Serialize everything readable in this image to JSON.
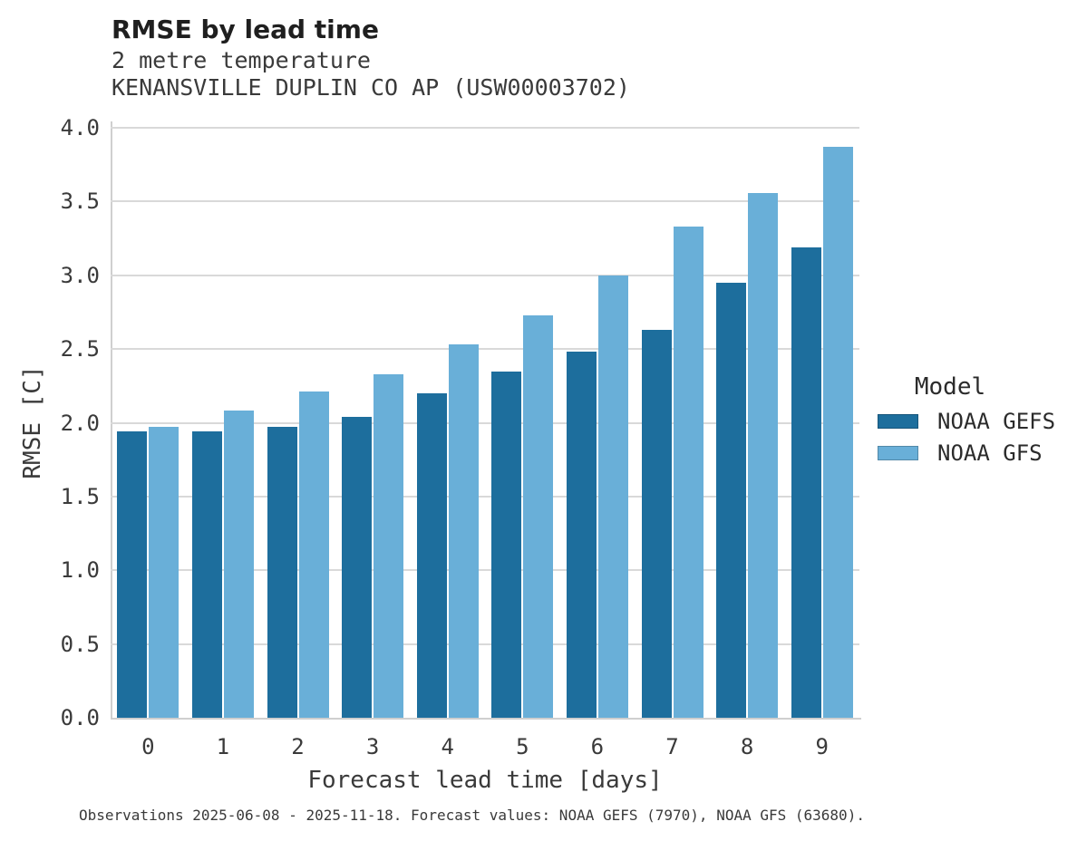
{
  "header": {
    "title": "RMSE by lead time",
    "subtitle_lines": [
      "2 metre temperature",
      "KENANSVILLE DUPLIN CO AP (USW00003702)"
    ]
  },
  "chart_data": {
    "type": "bar",
    "title": "RMSE by lead time",
    "subtitle": [
      "2 metre temperature",
      "KENANSVILLE DUPLIN CO AP (USW00003702)"
    ],
    "categories": [
      "0",
      "1",
      "2",
      "3",
      "4",
      "5",
      "6",
      "7",
      "8",
      "9"
    ],
    "series": [
      {
        "name": "NOAA GEFS",
        "color": "#1d6e9d",
        "values": [
          1.94,
          1.94,
          1.97,
          2.04,
          2.2,
          2.35,
          2.48,
          2.63,
          2.95,
          3.19
        ]
      },
      {
        "name": "NOAA GFS",
        "color": "#69afd8",
        "values": [
          1.97,
          2.08,
          2.21,
          2.33,
          2.53,
          2.73,
          3.0,
          3.33,
          3.56,
          3.87
        ]
      }
    ],
    "xlabel": "Forecast lead time [days]",
    "ylabel": "RMSE [C]",
    "ylim": [
      0.0,
      4.0
    ],
    "yticks": [
      0.0,
      0.5,
      1.0,
      1.5,
      2.0,
      2.5,
      3.0,
      3.5,
      4.0
    ],
    "grid": true,
    "legend_title": "Model",
    "legend_position": "right"
  },
  "colors": {
    "noaa_gefs": "#1d6e9d",
    "noaa_gfs": "#69afd8",
    "gridline": "#d9d9d9",
    "spine": "#cfcfcf",
    "text": "#3a3a3a"
  },
  "footer": {
    "caption": "Observations 2025-06-08 - 2025-11-18. Forecast values: NOAA GEFS (7970), NOAA GFS (63680)."
  }
}
